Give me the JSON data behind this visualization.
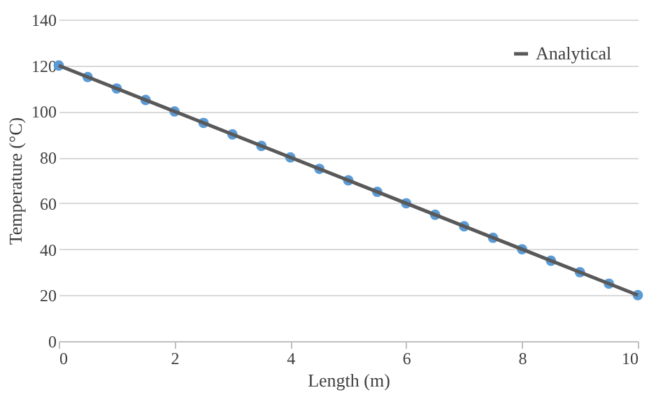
{
  "chart_data": {
    "type": "scatter",
    "xlabel": "Length (m)",
    "ylabel": "Temperature (°C)",
    "xlim": [
      0,
      10
    ],
    "xticks": [
      0,
      2,
      4,
      6,
      8,
      10
    ],
    "ylim": [
      0,
      140
    ],
    "yticks": [
      0,
      20,
      40,
      60,
      80,
      100,
      120,
      140
    ],
    "grid": "y",
    "legend": "top right",
    "series": [
      {
        "type": "scatter",
        "marker": "circle",
        "color": "#5b9bd5",
        "x": [
          0,
          0.5,
          1,
          1.5,
          2,
          2.5,
          3,
          3.5,
          4,
          4.5,
          5,
          5.5,
          6,
          6.5,
          7,
          7.5,
          8,
          8.5,
          9,
          9.5,
          10
        ],
        "values": [
          120,
          115,
          110,
          105,
          100,
          95,
          90,
          85,
          80,
          75,
          70,
          65,
          60,
          55,
          50,
          45,
          40,
          35,
          30,
          25,
          20
        ]
      },
      {
        "type": "line",
        "name": "Analytical",
        "color": "#595959",
        "x": [
          0,
          10
        ],
        "values": [
          120,
          20
        ],
        "line_style": "solid"
      }
    ]
  }
}
